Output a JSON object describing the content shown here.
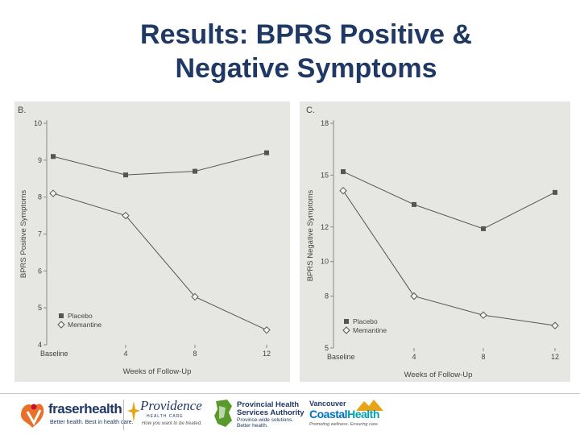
{
  "slide": {
    "title_line1": "Results: BPRS Positive &",
    "title_line2": "Negative Symptoms"
  },
  "chart_data": [
    {
      "type": "line",
      "panel_label": "B.",
      "title": "",
      "xlabel": "Weeks of Follow-Up",
      "ylabel": "BPRS Positive Symptoms",
      "categories": [
        "Baseline",
        "4",
        "8",
        "12"
      ],
      "ylim": [
        4,
        10
      ],
      "yticks": [
        "4",
        "5",
        "6",
        "7",
        "8",
        "9",
        "10"
      ],
      "series": [
        {
          "name": "Placebo",
          "marker": "square",
          "values": [
            9.1,
            8.6,
            8.7,
            9.2
          ]
        },
        {
          "name": "Memantine",
          "marker": "diamond",
          "values": [
            8.1,
            7.5,
            5.3,
            4.4
          ]
        }
      ]
    },
    {
      "type": "line",
      "panel_label": "C.",
      "title": "",
      "xlabel": "Weeks of Follow-Up",
      "ylabel": "BPRS Negative Symptoms",
      "categories": [
        "Baseline",
        "4",
        "8",
        "12"
      ],
      "ylim": [
        5,
        18
      ],
      "yticks": [
        "5",
        "8",
        "10",
        "12",
        "15",
        "18"
      ],
      "series": [
        {
          "name": "Placebo",
          "marker": "square",
          "values": [
            15.2,
            13.3,
            11.9,
            14.0
          ]
        },
        {
          "name": "Memantine",
          "marker": "diamond",
          "values": [
            14.1,
            8.0,
            6.9,
            6.3
          ]
        }
      ]
    }
  ],
  "footer": {
    "fraser": {
      "name": "fraserhealth",
      "tagline": "Better health. Best in health care."
    },
    "providence": {
      "name": "Providence",
      "sub": "HEALTH CARE",
      "tagline": "How you want to be treated."
    },
    "phsa": {
      "name_line1": "Provincial Health",
      "name_line2": "Services Authority",
      "tag_line1": "Province-wide solutions.",
      "tag_line2": "Better health."
    },
    "vch": {
      "line1": "Vancouver",
      "line2a": "Coastal",
      "line2b": "Health",
      "tagline": "Promoting wellness. Ensuring care."
    },
    "colors": {
      "navy": "#1f3864",
      "fraser_orange": "#e8702a",
      "fraser_red": "#c8102e",
      "phsa_green": "#5a9a2c",
      "vch_blue": "#0070c0"
    }
  }
}
